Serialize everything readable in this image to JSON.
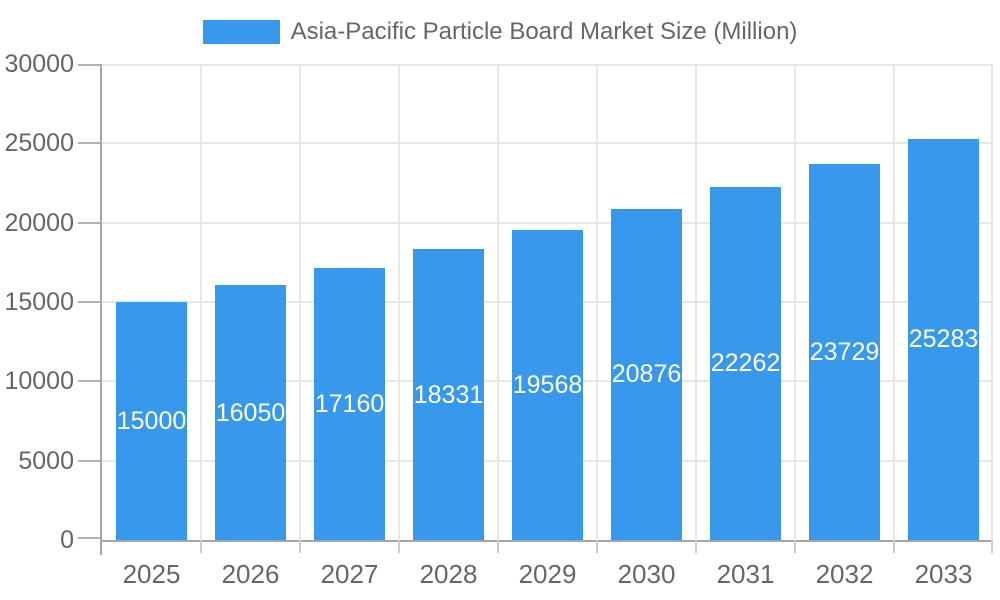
{
  "legend": {
    "label": "Asia-Pacific Particle Board Market Size (Million)"
  },
  "chart_data": {
    "type": "bar",
    "title": "Asia-Pacific Particle Board Market Size (Million)",
    "categories": [
      "2025",
      "2026",
      "2027",
      "2028",
      "2029",
      "2030",
      "2031",
      "2032",
      "2033"
    ],
    "values": [
      15000,
      16050,
      17160,
      18331,
      19568,
      20876,
      22262,
      23729,
      25283
    ],
    "xlabel": "",
    "ylabel": "",
    "ylim": [
      0,
      30000
    ],
    "ytick_step": 5000,
    "ytick_labels": [
      "0",
      "5000",
      "10000",
      "15000",
      "20000",
      "25000",
      "30000"
    ],
    "grid": true,
    "legend_position": "top",
    "value_labels": "inside-center-white",
    "colors": {
      "bar": "#3899ec",
      "value_label": "#ffffff",
      "axis_text": "#666666",
      "legend_text": "#666666",
      "gridline": "#e7e7e7",
      "axis_line": "#a6a6a6",
      "y_tick": "#b3b3b3",
      "x_tick": "#cccccc",
      "background": "#ffffff"
    }
  }
}
